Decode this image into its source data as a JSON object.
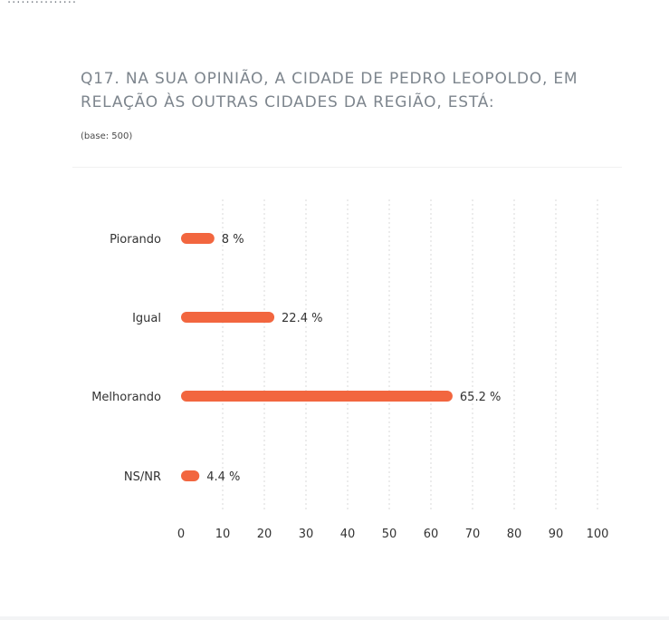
{
  "header": {
    "fragment": "...............",
    "title": "Q17. NA SUA OPINIÃO, A CIDADE DE PEDRO LEOPOLDO, EM RELAÇÃO ÀS OUTRAS CIDADES DA REGIÃO, ESTÁ:",
    "base": "(base: 500)"
  },
  "colors": {
    "bar": "#f2663f",
    "grid": "#d9d9d9",
    "title": "#7d858d",
    "text": "#333333"
  },
  "chart_data": {
    "type": "bar",
    "orientation": "horizontal",
    "categories": [
      "Piorando",
      "Igual",
      "Melhorando",
      "NS/NR"
    ],
    "values": [
      8,
      22.4,
      65.2,
      4.4
    ],
    "value_labels": [
      "8 %",
      "22.4 %",
      "65.2 %",
      "4.4 %"
    ],
    "xlim": [
      0,
      100
    ],
    "x_ticks": [
      0,
      10,
      20,
      30,
      40,
      50,
      60,
      70,
      80,
      90,
      100
    ],
    "grid": "vertical dotted",
    "legend": "none"
  }
}
